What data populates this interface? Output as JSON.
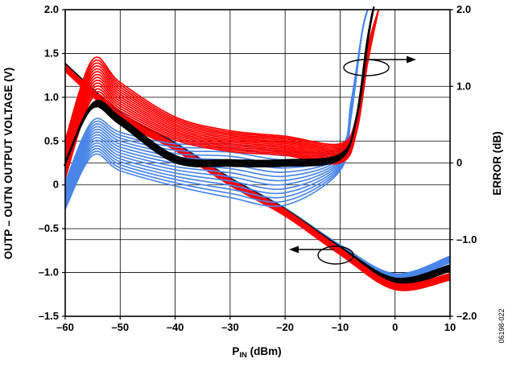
{
  "chart_data": {
    "type": "line",
    "title": "",
    "xlabel_main": "P",
    "xlabel_sub": "IN",
    "xlabel_unit": " (dBm)",
    "ylabel_left": "OUTP – OUTN OUTPUT VOLTAGE (V)",
    "ylabel_right": "ERROR (dB)",
    "figure_id": "06198-022",
    "xlim": [
      -60,
      10
    ],
    "ylim_left": [
      -1.5,
      2.0
    ],
    "ylim_right": [
      -2.0,
      2.0
    ],
    "grid": true,
    "x_ticks": [
      -60,
      -50,
      -40,
      -30,
      -20,
      -10,
      0,
      10
    ],
    "x_tick_labels": [
      "–60",
      "–50",
      "–40",
      "–30",
      "–20",
      "–10",
      "0",
      "10"
    ],
    "y_left_ticks": [
      -1.5,
      -1.0,
      -0.5,
      0,
      0.5,
      1.0,
      1.5,
      2.0
    ],
    "y_left_tick_labels": [
      "–1.5",
      "–1.0",
      "–0.5",
      "0",
      "0.5",
      "1.0",
      "1.5",
      "2.0"
    ],
    "y_right_ticks": [
      -2.0,
      -1.0,
      0,
      1.0,
      2.0
    ],
    "y_right_tick_labels": [
      "–2.0",
      "–1.0",
      "0",
      "1.0",
      "2.0"
    ],
    "series_colors": {
      "blue": "#4a86e8",
      "black": "#000000",
      "red": "#ff0000"
    },
    "voltage_series": [
      {
        "color": "blue",
        "x": [
          -60,
          -50,
          -40,
          -30,
          -20,
          -10,
          0,
          10
        ],
        "y": [
          1.35,
          0.8,
          0.45,
          0.05,
          -0.3,
          -0.72,
          -1.05,
          -0.85
        ]
      },
      {
        "color": "black",
        "x": [
          -60,
          -50,
          -40,
          -30,
          -20,
          -10,
          0,
          10
        ],
        "y": [
          1.35,
          0.79,
          0.44,
          0.04,
          -0.31,
          -0.74,
          -1.1,
          -0.95
        ]
      },
      {
        "color": "red",
        "x": [
          -60,
          -50,
          -40,
          -30,
          -20,
          -10,
          0,
          10
        ],
        "y": [
          1.33,
          0.78,
          0.43,
          0.03,
          -0.32,
          -0.76,
          -1.16,
          -1.05
        ]
      }
    ],
    "error_series": [
      {
        "color": "red",
        "x": [
          -60,
          -55,
          -50,
          -40,
          -30,
          -20,
          -10,
          -7,
          -5,
          -3
        ],
        "y": [
          0.3,
          1.35,
          1.05,
          0.6,
          0.42,
          0.35,
          0.25,
          0.6,
          1.5,
          2.0
        ]
      },
      {
        "color": "red",
        "x": [
          -60,
          -55,
          -50,
          -40,
          -30,
          -20,
          -10,
          -7,
          -5,
          -3
        ],
        "y": [
          -0.2,
          0.85,
          0.65,
          0.3,
          0.15,
          0.1,
          0.0,
          0.4,
          1.3,
          2.0
        ]
      },
      {
        "color": "black",
        "x": [
          -60,
          -55,
          -50,
          -40,
          -30,
          -20,
          -10,
          -7,
          -5,
          -4
        ],
        "y": [
          0.0,
          0.75,
          0.55,
          0.05,
          0.0,
          0.0,
          0.08,
          0.6,
          1.6,
          2.0
        ]
      },
      {
        "color": "blue",
        "x": [
          -60,
          -55,
          -50,
          -40,
          -30,
          -20,
          -10,
          -8,
          -6,
          -5
        ],
        "y": [
          -0.25,
          0.55,
          0.4,
          0.25,
          0.25,
          0.15,
          0.2,
          0.8,
          1.7,
          2.0
        ]
      },
      {
        "color": "blue",
        "x": [
          -60,
          -55,
          -50,
          -40,
          -30,
          -20,
          -10,
          -8,
          -6,
          -5
        ],
        "y": [
          -0.6,
          0.1,
          -0.1,
          -0.3,
          -0.45,
          -0.55,
          -0.1,
          0.6,
          1.7,
          2.0
        ]
      }
    ]
  }
}
